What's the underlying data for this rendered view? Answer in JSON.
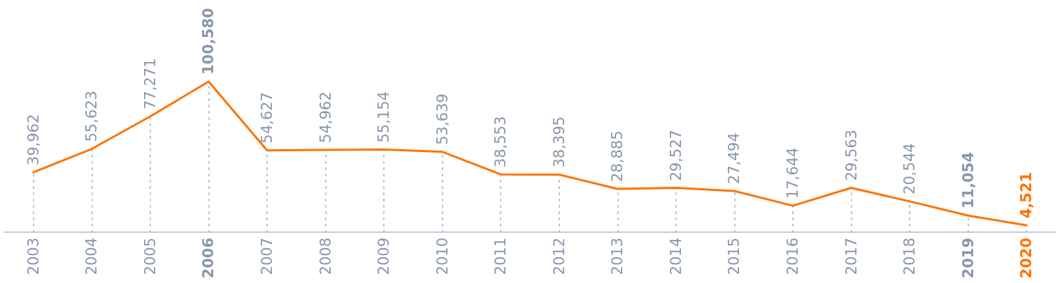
{
  "chart_data": {
    "type": "line",
    "categories": [
      "2003",
      "2004",
      "2005",
      "2006",
      "2007",
      "2008",
      "2009",
      "2010",
      "2011",
      "2012",
      "2013",
      "2014",
      "2015",
      "2016",
      "2017",
      "2018",
      "2019",
      "2020"
    ],
    "series": [
      {
        "color": "#ff7300",
        "values": [
          39962,
          55623,
          77271,
          100580,
          54627,
          54962,
          55154,
          53639,
          38553,
          38395,
          28885,
          29527,
          27494,
          17644,
          29563,
          20544,
          11054,
          4521
        ],
        "value_labels": [
          "39,962",
          "55,623",
          "77,271",
          "100,580",
          "54,627",
          "54,962",
          "55,154",
          "53,639",
          "38,553",
          "38,395",
          "28,885",
          "29,527",
          "27,494",
          "17,644",
          "29,563",
          "20,544",
          "11,054",
          "4,521"
        ]
      }
    ],
    "tick_labels": "x",
    "grid": "x",
    "marker": "none",
    "line_style": "solid"
  }
}
